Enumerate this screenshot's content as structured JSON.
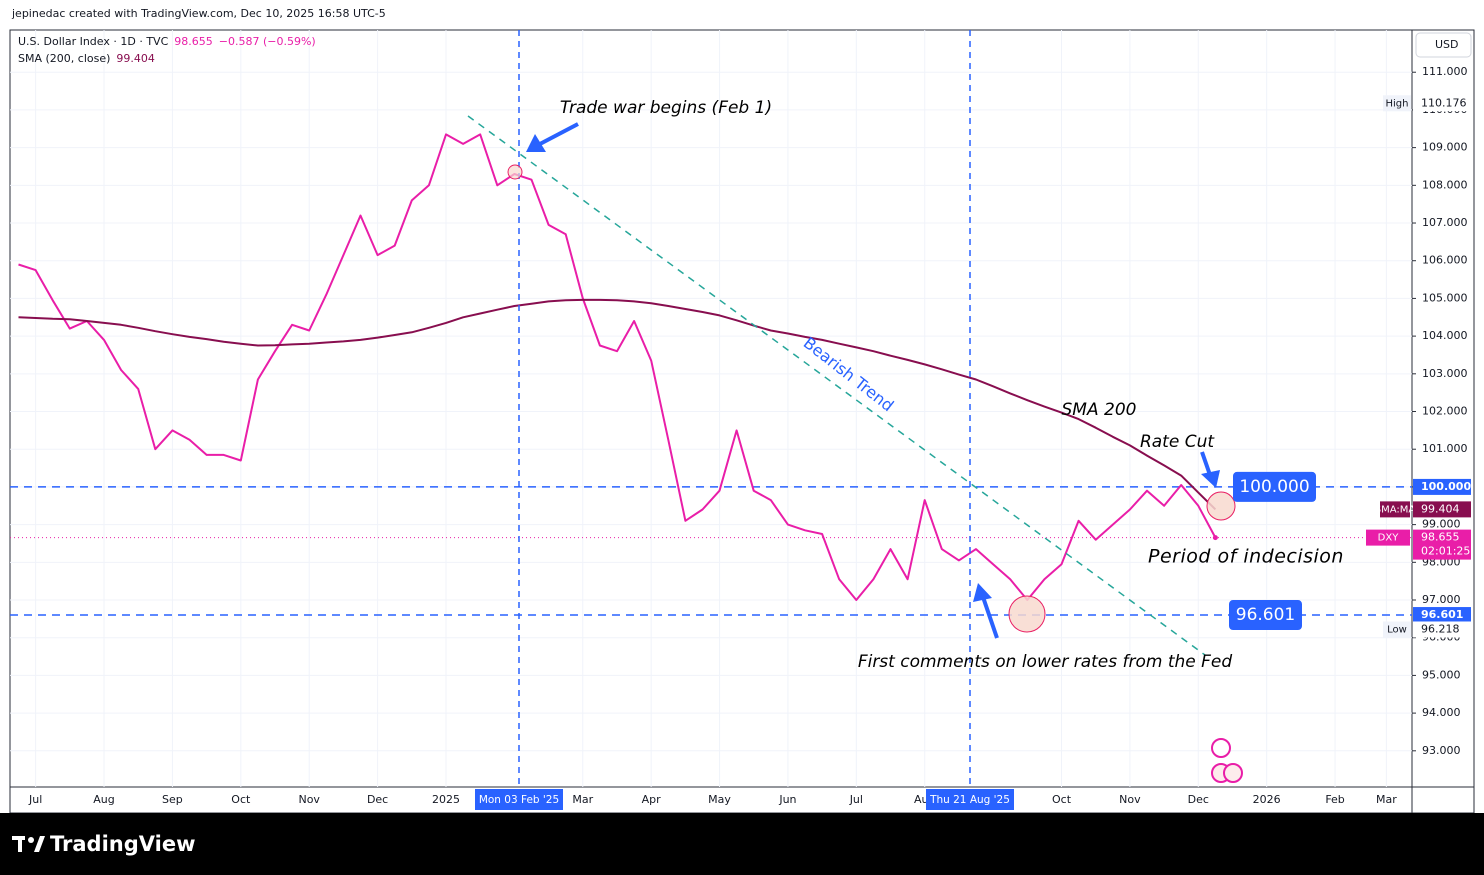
{
  "header": {
    "credit": "jepinedac created with TradingView.com, Dec 10, 2025 16:58 UTC-5"
  },
  "footer": {
    "logo": "TradingView"
  },
  "chart_data": {
    "type": "line",
    "symbol": "U.S. Dollar Index · 1D · TVC",
    "change": "−0.587 (−0.59%)",
    "indicator": "SMA (200, close)",
    "currency": "USD",
    "categories": [
      null,
      "Jul",
      null,
      null,
      null,
      "Aug",
      null,
      null,
      null,
      "Sep",
      null,
      null,
      null,
      "Oct",
      null,
      null,
      null,
      "Nov",
      null,
      null,
      null,
      "Dec",
      null,
      null,
      null,
      "2025",
      null,
      null,
      null,
      null,
      null,
      null,
      null,
      "Mar",
      null,
      null,
      null,
      "Apr",
      null,
      null,
      null,
      "May",
      null,
      null,
      null,
      "Jun",
      null,
      null,
      null,
      "Jul",
      null,
      null,
      null,
      "Aug",
      null,
      null,
      null,
      null,
      null,
      null,
      null,
      "Oct",
      null,
      null,
      null,
      "Nov",
      null,
      null,
      null,
      "Dec",
      null,
      null,
      null,
      "2026",
      null,
      null,
      null,
      "Feb",
      null,
      null,
      "Mar",
      null
    ],
    "series": [
      {
        "name": "DXY",
        "color": "#e91ea8",
        "values": [
          105.9,
          105.75,
          104.95,
          104.2,
          104.4,
          103.9,
          103.1,
          102.6,
          101.0,
          101.5,
          101.25,
          100.85,
          100.85,
          100.7,
          102.85,
          103.6,
          104.3,
          104.15,
          105.1,
          106.15,
          107.2,
          106.15,
          106.4,
          107.6,
          108.0,
          109.35,
          109.1,
          109.35,
          108.0,
          108.3,
          108.15,
          106.95,
          106.7,
          105.0,
          103.75,
          103.6,
          104.4,
          103.35,
          101.25,
          99.1,
          99.4,
          99.9,
          101.5,
          99.9,
          99.65,
          99.0,
          98.85,
          98.75,
          97.55,
          97.0,
          97.55,
          98.35,
          97.55,
          99.65,
          98.35,
          98.05,
          98.35,
          97.95,
          97.55,
          97.0,
          97.55,
          97.95,
          99.1,
          98.6,
          99.0,
          99.4,
          99.9,
          99.5,
          100.05,
          99.5,
          98.655,
          null,
          null,
          null,
          null,
          null,
          null,
          null,
          null,
          null,
          null,
          null
        ]
      },
      {
        "name": "SMA:MA",
        "color": "#880e4f",
        "values": [
          104.5,
          104.48,
          104.46,
          104.45,
          104.4,
          104.35,
          104.3,
          104.22,
          104.13,
          104.05,
          103.98,
          103.92,
          103.85,
          103.8,
          103.75,
          103.76,
          103.78,
          103.8,
          103.83,
          103.86,
          103.9,
          103.96,
          104.03,
          104.1,
          104.22,
          104.35,
          104.5,
          104.6,
          104.7,
          104.8,
          104.86,
          104.92,
          104.95,
          104.96,
          104.96,
          104.95,
          104.92,
          104.87,
          104.8,
          104.72,
          104.64,
          104.55,
          104.42,
          104.28,
          104.15,
          104.07,
          103.98,
          103.9,
          103.8,
          103.7,
          103.6,
          103.48,
          103.37,
          103.25,
          103.12,
          102.98,
          102.85,
          102.67,
          102.48,
          102.3,
          102.13,
          101.97,
          101.8,
          101.57,
          101.33,
          101.1,
          100.83,
          100.57,
          100.3,
          99.85,
          99.404,
          null,
          null,
          null,
          null,
          null,
          null,
          null,
          null,
          null,
          null,
          null
        ]
      }
    ],
    "ylim": [
      92.04,
      112.12
    ],
    "yticks": [
      {
        "value": 93,
        "label": "93.000"
      },
      {
        "value": 94,
        "label": "94.000"
      },
      {
        "value": 95,
        "label": "95.000"
      },
      {
        "value": 96,
        "label": "96.000"
      },
      {
        "value": 97,
        "label": "97.000"
      },
      {
        "value": 98,
        "label": "98.000"
      },
      {
        "value": 99,
        "label": "99.000"
      },
      {
        "value": 100,
        "label": "100.000"
      },
      {
        "value": 101,
        "label": "101.000"
      },
      {
        "value": 102,
        "label": "102.000"
      },
      {
        "value": 103,
        "label": "103.000"
      },
      {
        "value": 104,
        "label": "104.000"
      },
      {
        "value": 105,
        "label": "105.000"
      },
      {
        "value": 106,
        "label": "106.000"
      },
      {
        "value": 107,
        "label": "107.000"
      },
      {
        "value": 108,
        "label": "108.000"
      },
      {
        "value": 109,
        "label": "109.000"
      },
      {
        "value": 110,
        "label": "110.000"
      },
      {
        "value": 111,
        "label": "111.000"
      }
    ],
    "grid": true,
    "countdown": "02:01:25",
    "extremes": [
      {
        "name": "High",
        "value": 110.176
      },
      {
        "name": "Low",
        "value": 96.218
      }
    ],
    "levels": [
      {
        "value": 100,
        "label": "100.000"
      },
      {
        "value": 96.601,
        "label": "96.601"
      }
    ],
    "crosshairs": [
      "Mon 03 Feb '25",
      "Thu 21 Aug '25"
    ],
    "annotations": [
      "Trade war begins (Feb 1)",
      "Bearish Trend",
      "SMA 200",
      "Rate Cut",
      "Period of indecision",
      "First comments on lower rates from the Fed"
    ]
  }
}
